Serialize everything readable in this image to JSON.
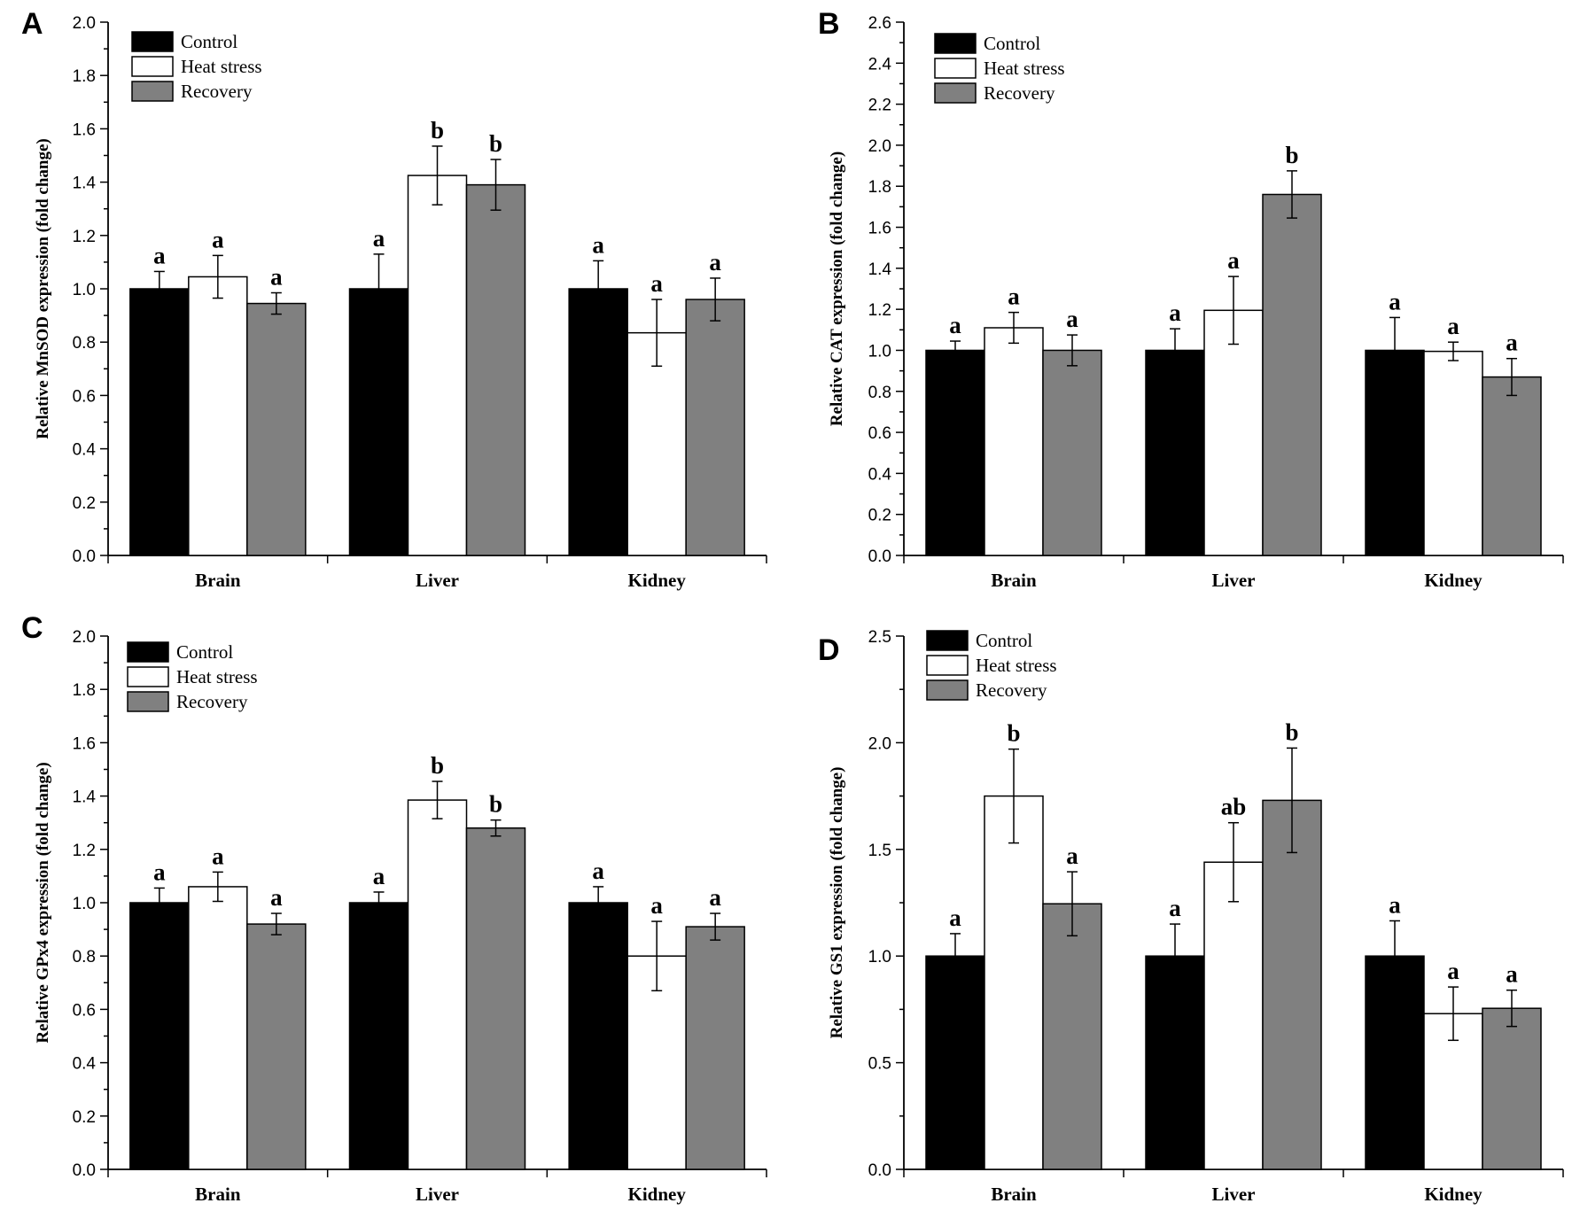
{
  "chart_data": [
    {
      "panel": "A",
      "type": "bar",
      "ylabel": "Relative MnSOD expression (fold change)",
      "ylim": [
        0,
        2.0
      ],
      "ytick_labels": [
        "0.0",
        "0.2",
        "0.4",
        "0.6",
        "0.8",
        "1.0",
        "1.2",
        "1.4",
        "1.6",
        "1.8",
        "2.0"
      ],
      "categories": [
        "Brain",
        "Liver",
        "Kidney"
      ],
      "series": [
        {
          "name": "Control",
          "values": [
            1.0,
            1.0,
            1.0
          ],
          "errors": [
            0.065,
            0.13,
            0.105
          ],
          "letters": [
            "a",
            "a",
            "a"
          ]
        },
        {
          "name": "Heat stress",
          "values": [
            1.045,
            1.425,
            0.835
          ],
          "errors": [
            0.08,
            0.11,
            0.125
          ],
          "letters": [
            "a",
            "b",
            "a"
          ]
        },
        {
          "name": "Recovery",
          "values": [
            0.945,
            1.39,
            0.96
          ],
          "errors": [
            0.04,
            0.095,
            0.08
          ],
          "letters": [
            "a",
            "b",
            "a"
          ]
        }
      ]
    },
    {
      "panel": "B",
      "type": "bar",
      "ylabel": "Relative CAT expression (fold change)",
      "ylim": [
        0,
        2.6
      ],
      "ytick_labels": [
        "0.0",
        "0.2",
        "0.4",
        "0.6",
        "0.8",
        "1.0",
        "1.2",
        "1.4",
        "1.6",
        "1.8",
        "2.0",
        "2.2",
        "2.4",
        "2.6"
      ],
      "categories": [
        "Brain",
        "Liver",
        "Kidney"
      ],
      "series": [
        {
          "name": "Control",
          "values": [
            1.0,
            1.0,
            1.0
          ],
          "errors": [
            0.045,
            0.105,
            0.16
          ],
          "letters": [
            "a",
            "a",
            "a"
          ]
        },
        {
          "name": "Heat stress",
          "values": [
            1.11,
            1.195,
            0.995
          ],
          "errors": [
            0.075,
            0.165,
            0.045
          ],
          "letters": [
            "a",
            "a",
            "a"
          ]
        },
        {
          "name": "Recovery",
          "values": [
            1.0,
            1.76,
            0.87
          ],
          "errors": [
            0.075,
            0.115,
            0.09
          ],
          "letters": [
            "a",
            "b",
            "a"
          ]
        }
      ]
    },
    {
      "panel": "C",
      "type": "bar",
      "ylabel": "Relative GPx4 expression (fold change)",
      "ylim": [
        0,
        2.0
      ],
      "ytick_labels": [
        "0.0",
        "0.2",
        "0.4",
        "0.6",
        "0.8",
        "1.0",
        "1.2",
        "1.4",
        "1.6",
        "1.8",
        "2.0"
      ],
      "categories": [
        "Brain",
        "Liver",
        "Kidney"
      ],
      "series": [
        {
          "name": "Control",
          "values": [
            1.0,
            1.0,
            1.0
          ],
          "errors": [
            0.055,
            0.04,
            0.06
          ],
          "letters": [
            "a",
            "a",
            "a"
          ]
        },
        {
          "name": "Heat stress",
          "values": [
            1.06,
            1.385,
            0.8
          ],
          "errors": [
            0.055,
            0.07,
            0.13
          ],
          "letters": [
            "a",
            "b",
            "a"
          ]
        },
        {
          "name": "Recovery",
          "values": [
            0.92,
            1.28,
            0.91
          ],
          "errors": [
            0.04,
            0.03,
            0.05
          ],
          "letters": [
            "a",
            "b",
            "a"
          ]
        }
      ]
    },
    {
      "panel": "D",
      "type": "bar",
      "ylabel": "Relative GS1 expression (fold change)",
      "ylim": [
        0,
        2.5
      ],
      "ytick_labels": [
        "0.0",
        "0.5",
        "1.0",
        "1.5",
        "2.0",
        "2.5"
      ],
      "categories": [
        "Brain",
        "Liver",
        "Kidney"
      ],
      "series": [
        {
          "name": "Control",
          "values": [
            1.0,
            1.0,
            1.0
          ],
          "errors": [
            0.105,
            0.15,
            0.165
          ],
          "letters": [
            "a",
            "a",
            "a"
          ]
        },
        {
          "name": "Heat stress",
          "values": [
            1.75,
            1.44,
            0.73
          ],
          "errors": [
            0.22,
            0.185,
            0.125
          ],
          "letters": [
            "b",
            "ab",
            "a"
          ]
        },
        {
          "name": "Recovery",
          "values": [
            1.245,
            1.73,
            0.755
          ],
          "errors": [
            0.15,
            0.245,
            0.085
          ],
          "letters": [
            "a",
            "b",
            "a"
          ]
        }
      ]
    }
  ],
  "legend": [
    "Control",
    "Heat stress",
    "Recovery"
  ],
  "colors": {
    "Control": "#000000",
    "Heat stress": "#ffffff",
    "Recovery": "#808080",
    "axis": "#000000"
  }
}
